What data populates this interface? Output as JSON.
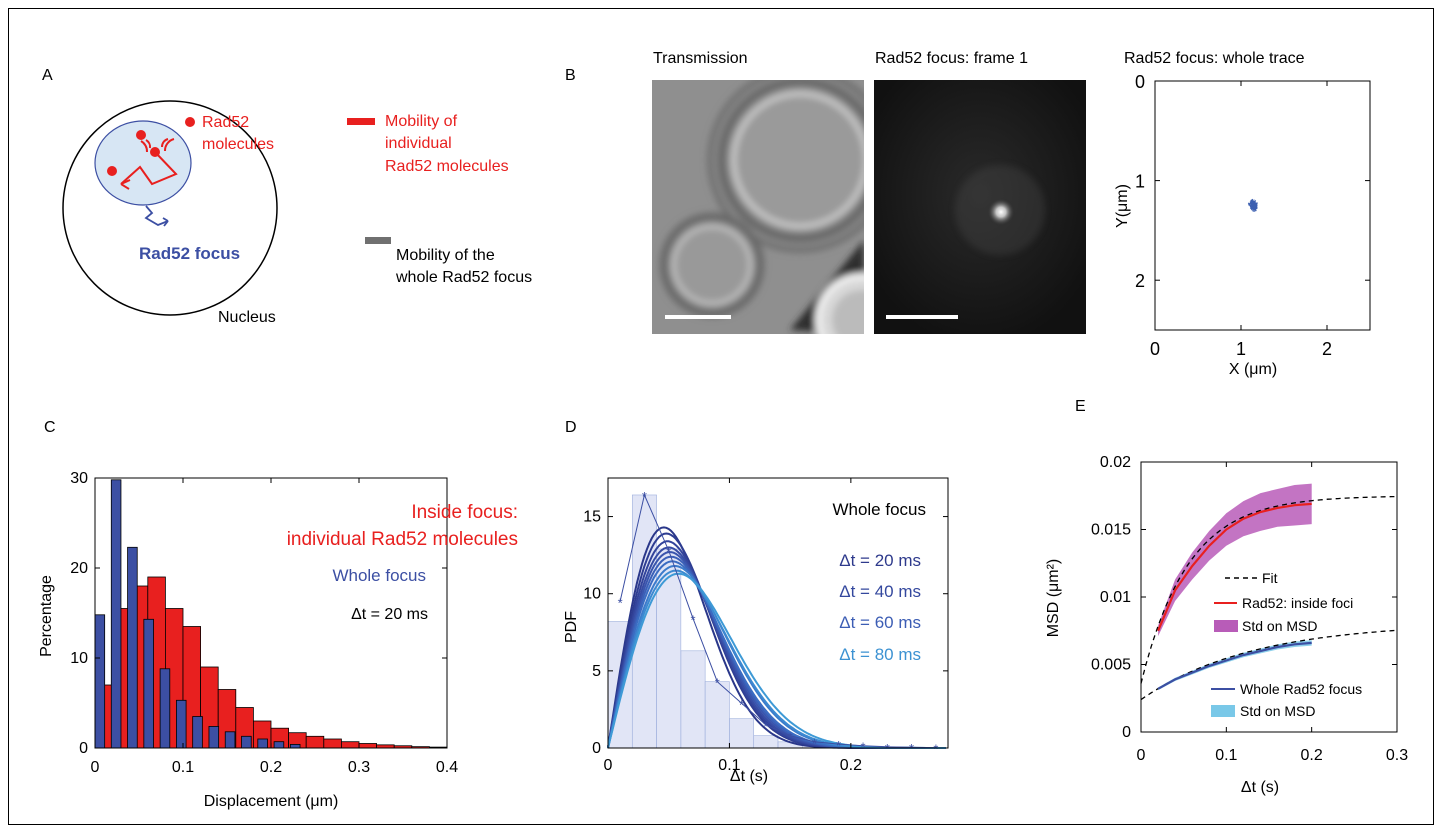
{
  "colors": {
    "red": "#e8201f",
    "blue": "#3c4fa3",
    "grey": "#707070",
    "pink": "#b85cb8",
    "cyan": "#79c8e8",
    "light_blue_fill": "#bfd8ec",
    "hist_fill": "#c9d0ee"
  },
  "panel_a": {
    "label": "A",
    "molecules_label": [
      "Rad52",
      "molecules"
    ],
    "focus_label": "Rad52 focus",
    "nucleus_label": "Nucleus",
    "legend": [
      {
        "lines": [
          "Mobility of",
          "individual",
          "Rad52 molecules"
        ],
        "color": "#e8201f",
        "text_color": "#e8201f"
      },
      {
        "lines": [
          "Mobility of the",
          "whole Rad52 focus"
        ],
        "color": "#707070",
        "text_color": "#000000"
      }
    ]
  },
  "panel_b": {
    "label": "B",
    "images": [
      {
        "title": "Transmission",
        "type": "transmission"
      },
      {
        "title": "Rad52 focus: frame 1",
        "type": "fluorescence"
      }
    ],
    "trace": {
      "title": "Rad52 focus: whole trace",
      "xlabel": "X (μm)",
      "ylabel": "Y(μm)",
      "xlim": [
        0,
        2.5
      ],
      "ylim": [
        0,
        2.5
      ],
      "xticks": [
        0,
        1,
        2
      ],
      "yticks": [
        0,
        1,
        2
      ],
      "center": [
        1.15,
        1.25
      ],
      "spread": 0.07
    }
  },
  "chart_data": [
    {
      "panel": "C",
      "type": "bar",
      "xlabel": "Displacement (μm)",
      "ylabel": "Percentage",
      "xlim": [
        0,
        0.4
      ],
      "ylim": [
        0,
        30
      ],
      "xticks": [
        0,
        0.1,
        0.2,
        0.3,
        0.4
      ],
      "yticks": [
        0,
        10,
        20,
        30
      ],
      "legend_text": [
        {
          "text": "Inside focus:",
          "color": "#e8201f"
        },
        {
          "text": "individual Rad52 molecules",
          "color": "#e8201f"
        },
        {
          "text": "Whole focus",
          "color": "#3c4fa3"
        },
        {
          "text": "Δt = 20 ms",
          "color": "#000000"
        }
      ],
      "series": [
        {
          "name": "Inside focus: individual Rad52 molecules",
          "color": "#e8201f",
          "bin_width": 0.02,
          "x": [
            0.0,
            0.02,
            0.04,
            0.06,
            0.08,
            0.1,
            0.12,
            0.14,
            0.16,
            0.18,
            0.2,
            0.22,
            0.24,
            0.26,
            0.28,
            0.3,
            0.32,
            0.34,
            0.36,
            0.38
          ],
          "values": [
            7,
            15.5,
            18,
            19,
            15.5,
            13.5,
            9,
            6.5,
            4.5,
            3,
            2.2,
            1.7,
            1.3,
            1,
            0.7,
            0.5,
            0.35,
            0.25,
            0.15,
            0.1
          ]
        },
        {
          "name": "Whole focus",
          "color": "#3c4fa3",
          "bin_width": 0.011,
          "x": [
            0.0,
            0.0185,
            0.037,
            0.0555,
            0.074,
            0.0925,
            0.111,
            0.1295,
            0.148,
            0.1665,
            0.185,
            0.2035,
            0.222
          ],
          "values": [
            14.8,
            29.8,
            22.3,
            14.3,
            8.8,
            5.3,
            3.5,
            2.4,
            1.8,
            1.3,
            1,
            0.7,
            0.4
          ]
        }
      ]
    },
    {
      "panel": "D",
      "type": "line",
      "xlabel": "Δt (s)",
      "ylabel": "PDF",
      "xlim": [
        0,
        0.28
      ],
      "ylim": [
        0,
        17.5
      ],
      "xticks": [
        0,
        0.1,
        0.2
      ],
      "yticks": [
        0,
        5,
        10,
        15
      ],
      "legend_title": "Whole focus",
      "legend": [
        {
          "text": "Δt = 20 ms",
          "color": "#2e3a8c"
        },
        {
          "text": "Δt = 40 ms",
          "color": "#34489e"
        },
        {
          "text": "Δt = 60 ms",
          "color": "#3c5db4"
        },
        {
          "text": "Δt = 80 ms",
          "color": "#3c92d2"
        }
      ],
      "histogram": {
        "bin_width": 0.02,
        "x": [
          0.0,
          0.02,
          0.04,
          0.06,
          0.08,
          0.1,
          0.12,
          0.14,
          0.16,
          0.18,
          0.2,
          0.22,
          0.24,
          0.26
        ],
        "values": [
          8.2,
          16.4,
          12.9,
          6.3,
          4.3,
          1.9,
          0.8,
          0.4,
          0.2,
          0.1,
          0.05,
          0.03,
          0.02,
          0.01
        ]
      },
      "fit_peaks": [
        {
          "peak_x": 0.046,
          "peak_y": 14.3,
          "color": "#2a378a"
        },
        {
          "peak_x": 0.048,
          "peak_y": 13.9,
          "color": "#2e3d92"
        },
        {
          "peak_x": 0.049,
          "peak_y": 13.4,
          "color": "#33449b"
        },
        {
          "peak_x": 0.05,
          "peak_y": 13.0,
          "color": "#374ca4"
        },
        {
          "peak_x": 0.051,
          "peak_y": 12.7,
          "color": "#3a55ad"
        },
        {
          "peak_x": 0.052,
          "peak_y": 12.4,
          "color": "#3b60b8"
        },
        {
          "peak_x": 0.053,
          "peak_y": 12.1,
          "color": "#3b6cc2"
        },
        {
          "peak_x": 0.055,
          "peak_y": 11.8,
          "color": "#3c7bcb"
        },
        {
          "peak_x": 0.056,
          "peak_y": 11.5,
          "color": "#3c8ad1"
        },
        {
          "peak_x": 0.058,
          "peak_y": 11.3,
          "color": "#3e9ad6"
        }
      ],
      "data_points": {
        "color": "#3c4fa3",
        "x": [
          0.01,
          0.03,
          0.05,
          0.07,
          0.09,
          0.11,
          0.13,
          0.15,
          0.17,
          0.19,
          0.21,
          0.23,
          0.25,
          0.27
        ],
        "y": [
          9.5,
          16.4,
          12.8,
          8.4,
          4.3,
          2.9,
          1.5,
          0.8,
          0.4,
          0.25,
          0.15,
          0.08,
          0.05,
          0.02
        ]
      }
    },
    {
      "panel": "E",
      "type": "line",
      "xlabel": "Δt (s)",
      "ylabel": "MSD (μm²)",
      "xlim": [
        0,
        0.3
      ],
      "ylim": [
        0,
        0.02
      ],
      "xticks": [
        0,
        0.1,
        0.2,
        0.3
      ],
      "yticks": [
        0,
        0.005,
        0.01,
        0.015,
        0.02
      ],
      "legend": [
        {
          "text": "Fit",
          "color": "#000000",
          "style": "dashed"
        },
        {
          "text": "Rad52: inside foci",
          "color": "#e8201f",
          "style": "line"
        },
        {
          "text": "Std on MSD",
          "color": "#b85cb8",
          "style": "band"
        },
        {
          "text": "Whole Rad52 focus",
          "color": "#3c4fa3",
          "style": "line"
        },
        {
          "text": "Std on MSD",
          "color": "#79c8e8",
          "style": "band"
        }
      ],
      "series": [
        {
          "name": "Rad52: inside foci",
          "color": "#e8201f",
          "x": [
            0.02,
            0.04,
            0.06,
            0.08,
            0.1,
            0.12,
            0.14,
            0.16,
            0.18,
            0.2
          ],
          "values": [
            0.0075,
            0.0105,
            0.0123,
            0.0138,
            0.015,
            0.0158,
            0.0163,
            0.0166,
            0.0168,
            0.0169
          ],
          "std": [
            0.0004,
            0.0008,
            0.001,
            0.0011,
            0.0012,
            0.0013,
            0.0014,
            0.0014,
            0.0015,
            0.0015
          ]
        },
        {
          "name": "Whole Rad52 focus",
          "color": "#3c4fa3",
          "x": [
            0.02,
            0.04,
            0.06,
            0.08,
            0.1,
            0.12,
            0.14,
            0.16,
            0.18,
            0.2
          ],
          "values": [
            0.0032,
            0.0039,
            0.0044,
            0.0049,
            0.0053,
            0.0057,
            0.006,
            0.0063,
            0.0065,
            0.0066
          ],
          "std": [
            0.0001,
            0.00012,
            0.00014,
            0.00015,
            0.00016,
            0.00017,
            0.00018,
            0.00019,
            0.0002,
            0.0002
          ]
        }
      ],
      "fits": [
        {
          "name": "Fit",
          "plateau": 0.0175,
          "offset": 0.0036,
          "tau": 0.055
        },
        {
          "name": "Fit",
          "plateau": 0.0081,
          "offset": 0.0024,
          "tau": 0.13
        }
      ]
    }
  ]
}
